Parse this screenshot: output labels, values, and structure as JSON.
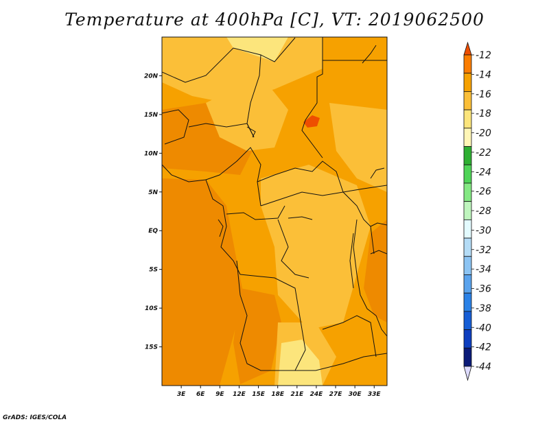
{
  "title": "Temperature at 400hPa [C], VT: 2019062500",
  "footer": "GrADS: IGES/COLA",
  "map": {
    "lon_range": [
      0,
      35
    ],
    "lat_range": [
      -20,
      25
    ],
    "x_ticks": [
      {
        "lon": 3,
        "label": "3E"
      },
      {
        "lon": 6,
        "label": "6E"
      },
      {
        "lon": 9,
        "label": "9E"
      },
      {
        "lon": 12,
        "label": "12E"
      },
      {
        "lon": 15,
        "label": "15E"
      },
      {
        "lon": 18,
        "label": "18E"
      },
      {
        "lon": 21,
        "label": "21E"
      },
      {
        "lon": 24,
        "label": "24E"
      },
      {
        "lon": 27,
        "label": "27E"
      },
      {
        "lon": 30,
        "label": "30E"
      },
      {
        "lon": 33,
        "label": "33E"
      }
    ],
    "y_ticks": [
      {
        "lat": 20,
        "label": "20N"
      },
      {
        "lat": 15,
        "label": "15N"
      },
      {
        "lat": 10,
        "label": "10N"
      },
      {
        "lat": 5,
        "label": "5N"
      },
      {
        "lat": 0,
        "label": "EQ"
      },
      {
        "lat": -5,
        "label": "5S"
      },
      {
        "lat": -10,
        "label": "10S"
      },
      {
        "lat": -15,
        "label": "15S"
      }
    ]
  },
  "colorbar": {
    "labels": [
      "-12",
      "-14",
      "-16",
      "-18",
      "-20",
      "-22",
      "-24",
      "-26",
      "-28",
      "-30",
      "-32",
      "-34",
      "-36",
      "-38",
      "-40",
      "-42",
      "-44"
    ],
    "colors": [
      "#ee4e00",
      "#fb7d00",
      "#f6a100",
      "#fbbf38",
      "#fce57c",
      "#fff6b6",
      "#2eaf32",
      "#4fd457",
      "#84e883",
      "#bff5be",
      "#e3fbff",
      "#b4dcf6",
      "#8cc4f3",
      "#5aa3ed",
      "#2b82e7",
      "#165ed6",
      "#0d3ebf",
      "#0a1a78",
      "#dedcff"
    ],
    "top_arrow_color": "#ee4e00",
    "bottom_arrow_color": "#dedcff"
  },
  "field_colors": {
    "base": "#f6a100",
    "warm": "#ee8a00",
    "cool": "#fbbf38",
    "coolest": "#fce57c",
    "hot": "#ee4e00"
  }
}
